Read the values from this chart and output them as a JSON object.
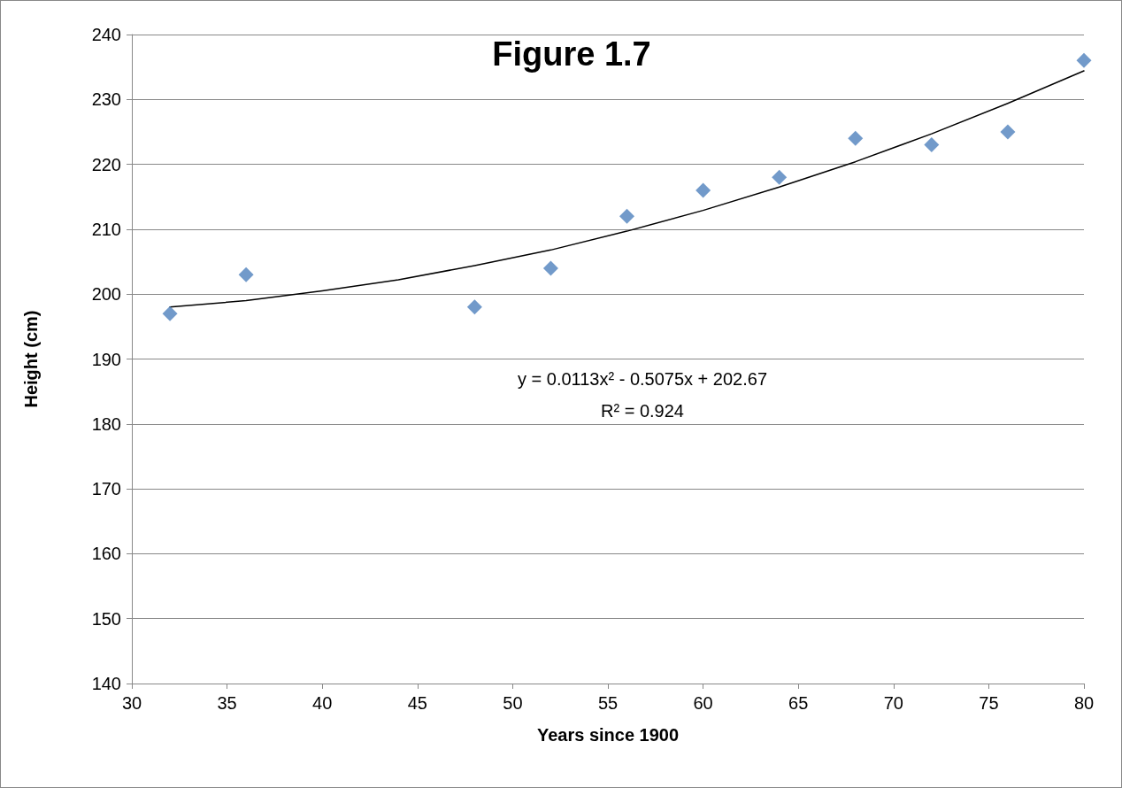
{
  "chart_data": {
    "type": "scatter",
    "title": "Figure 1.7",
    "xlabel": "Years since 1900",
    "ylabel": "Height (cm)",
    "annotations": [
      "y = 0.0113x² - 0.5075x + 202.67",
      "R² = 0.924"
    ],
    "series": [
      {
        "color": "#4f81bd",
        "marker": "diamond",
        "x": [
          32,
          36,
          48,
          52,
          56,
          60,
          64,
          68,
          72,
          76,
          80
        ],
        "values": [
          197,
          203,
          198,
          204,
          212,
          216,
          218,
          224,
          223,
          225,
          236
        ]
      },
      {
        "type": "line",
        "color": "#000000",
        "marker": "none",
        "line_style": "solid",
        "x": [
          32,
          36,
          40,
          44,
          48,
          52,
          56,
          60,
          64,
          68,
          72,
          76,
          80
        ],
        "values": [
          198.0,
          199.0,
          200.5,
          202.2,
          204.4,
          206.8,
          209.7,
          212.9,
          216.5,
          220.4,
          224.7,
          229.4,
          234.4
        ]
      }
    ],
    "xlim": [
      30,
      80
    ],
    "xticks": [
      30,
      35,
      40,
      45,
      50,
      55,
      60,
      65,
      70,
      75,
      80
    ],
    "ylim": [
      140,
      240
    ],
    "yticks": [
      140,
      150,
      160,
      170,
      180,
      190,
      200,
      210,
      220,
      230,
      240
    ],
    "grid": "y"
  }
}
